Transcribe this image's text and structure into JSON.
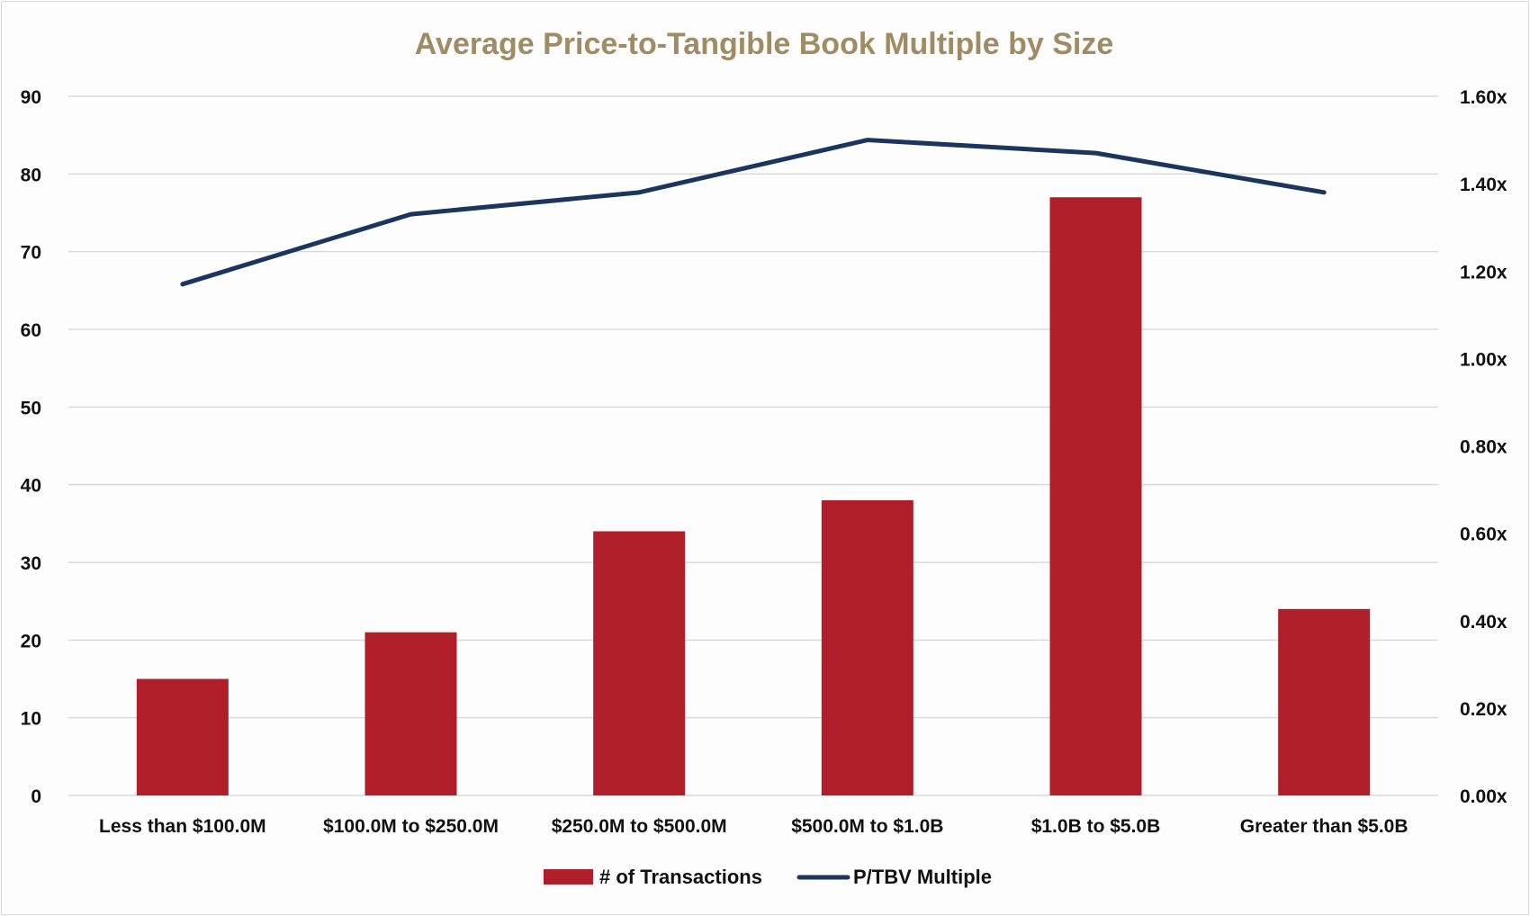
{
  "chart_data": {
    "type": "bar+line",
    "title": "Average Price-to-Tangible Book Multiple by Size",
    "categories": [
      "Less than $100.0M",
      "$100.0M to $250.0M",
      "$250.0M to $500.0M",
      "$500.0M to $1.0B",
      "$1.0B to $5.0B",
      "Greater than $5.0B"
    ],
    "series": [
      {
        "name": "# of Transactions",
        "type": "bar",
        "axis": "left",
        "color": "#b01f29",
        "values": [
          15,
          21,
          34,
          38,
          77,
          24
        ]
      },
      {
        "name": "P/TBV Multiple",
        "type": "line",
        "axis": "right",
        "color": "#1c355e",
        "values": [
          1.17,
          1.33,
          1.38,
          1.5,
          1.47,
          1.38
        ]
      }
    ],
    "left_axis": {
      "ylim": [
        0,
        90
      ],
      "ticks": [
        "0",
        "10",
        "20",
        "30",
        "40",
        "50",
        "60",
        "70",
        "80",
        "90"
      ]
    },
    "right_axis": {
      "ylim": [
        0,
        1.6
      ],
      "ticks": [
        "0.00x",
        "0.20x",
        "0.40x",
        "0.60x",
        "0.80x",
        "1.00x",
        "1.20x",
        "1.40x",
        "1.60x"
      ]
    },
    "grid": true,
    "legend": "bottom",
    "title_color": "#a08c64"
  }
}
